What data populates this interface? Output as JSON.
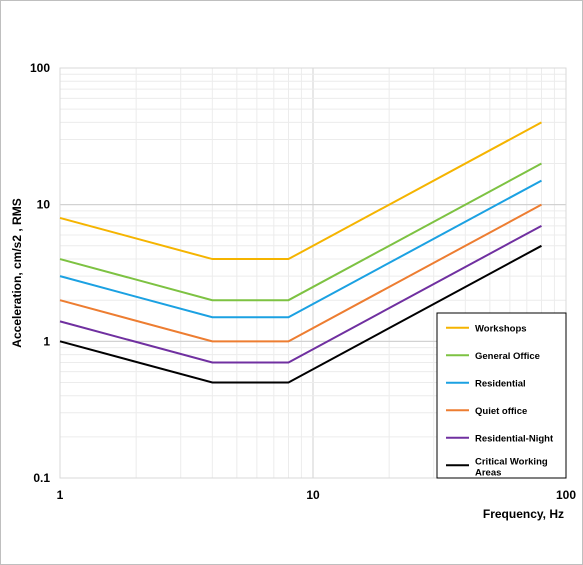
{
  "chart_data": {
    "type": "line",
    "xscale": "log",
    "yscale": "log",
    "xlim": [
      1,
      100
    ],
    "ylim": [
      0.1,
      100
    ],
    "xlabel": "Frequency, Hz",
    "ylabel": "Acceleration, cm/s2 , RMS",
    "x_ticks": [
      "1",
      "10",
      "100"
    ],
    "y_ticks": [
      "0.1",
      "1",
      "10",
      "100"
    ],
    "grid": true,
    "legend_position": "bottom-right",
    "x": [
      1,
      4,
      8,
      80
    ],
    "series": [
      {
        "name": "Workshops",
        "color": "#F5B400",
        "values": [
          8,
          4,
          4,
          40
        ]
      },
      {
        "name": "General Office",
        "color": "#7DC242",
        "values": [
          4,
          2,
          2,
          20
        ]
      },
      {
        "name": "Residential",
        "color": "#1BA1E2",
        "values": [
          3,
          1.5,
          1.5,
          15
        ]
      },
      {
        "name": "Quiet office",
        "color": "#ED7D31",
        "values": [
          2,
          1,
          1,
          10
        ]
      },
      {
        "name": "Residential-Night",
        "color": "#7030A0",
        "values": [
          1.4,
          0.7,
          0.7,
          7
        ]
      },
      {
        "name": "Critical Working Areas",
        "color": "#000000",
        "values": [
          1,
          0.5,
          0.5,
          5
        ]
      }
    ]
  }
}
